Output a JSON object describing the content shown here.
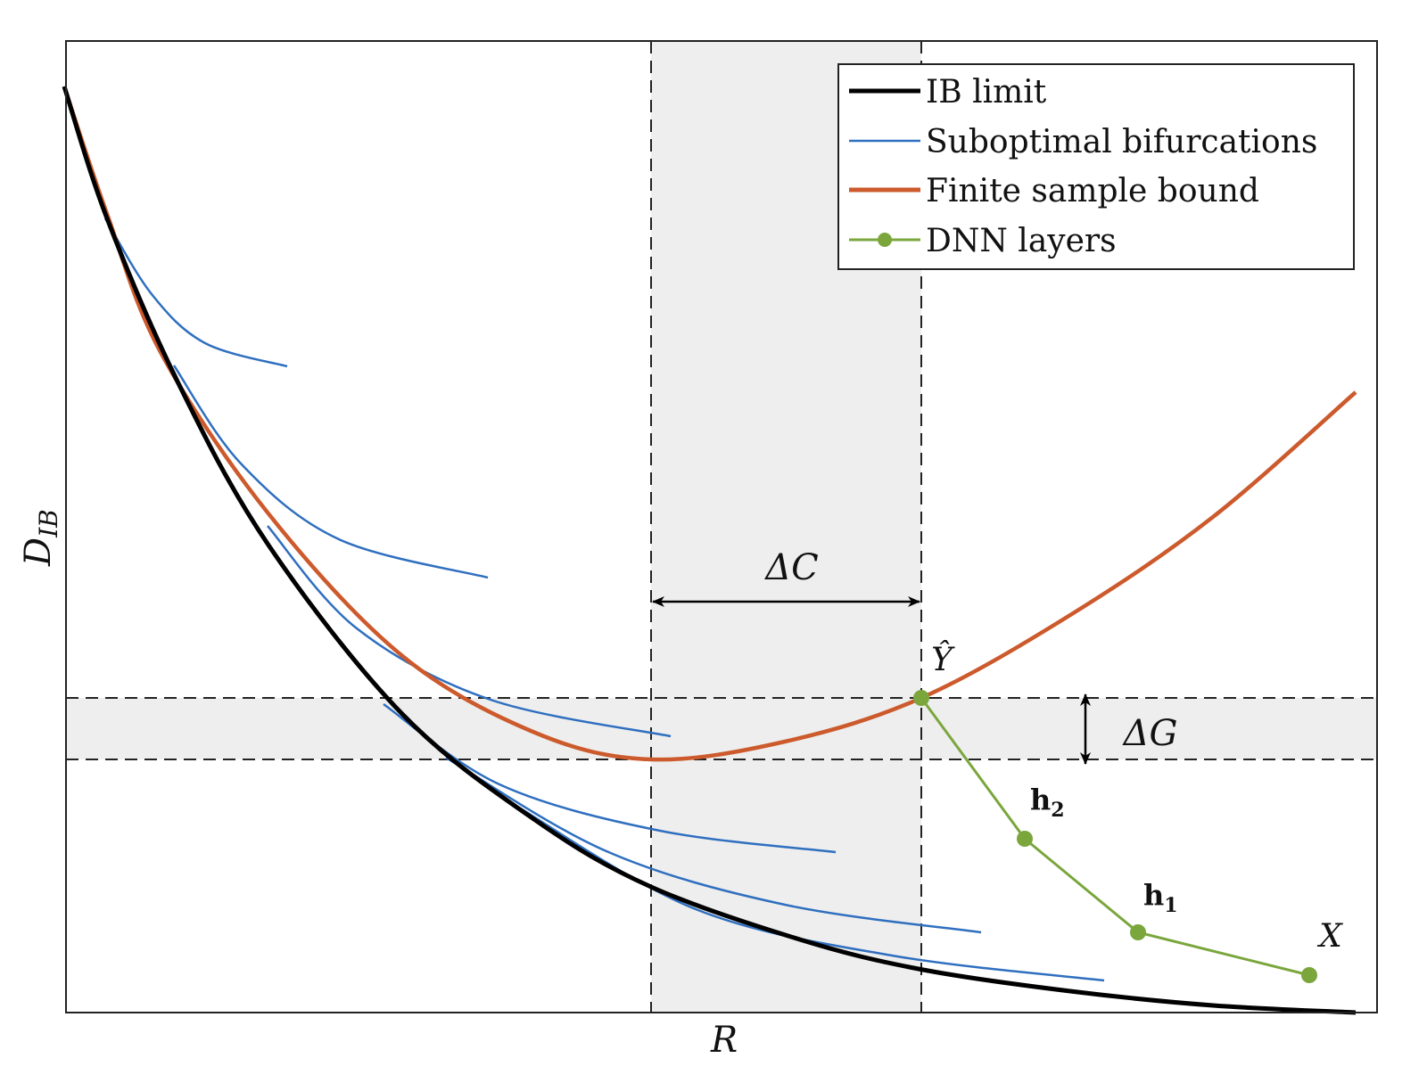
{
  "axes": {
    "xlabel": "R",
    "ylabel_main": "D",
    "ylabel_sub": "IB"
  },
  "legend": {
    "position": "top-right",
    "items": [
      {
        "label": "IB limit",
        "color": "#000000"
      },
      {
        "label": "Suboptimal bifurcations",
        "color": "#2f6fbf"
      },
      {
        "label": "Finite sample bound",
        "color": "#cc5a2c"
      },
      {
        "label": "DNN layers",
        "color": "#7aa63c"
      }
    ]
  },
  "annotations": {
    "delta_c": "ΔC",
    "delta_g": "ΔG",
    "y_hat": "Ŷ",
    "h2_main": "h",
    "h2_sub": "2",
    "h1_main": "h",
    "h1_sub": "1",
    "x": "X"
  },
  "colors": {
    "band": "#eeeeee",
    "frame": "#222222"
  }
}
